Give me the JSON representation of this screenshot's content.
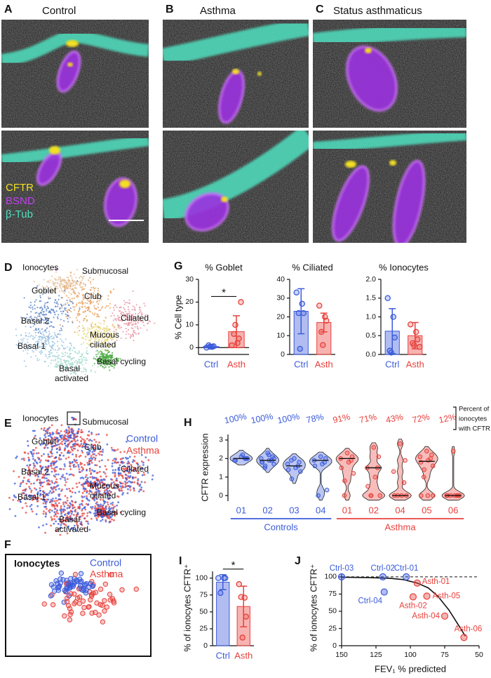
{
  "panels_top": [
    {
      "letter": "A",
      "title": "Control"
    },
    {
      "letter": "B",
      "title": "Asthma"
    },
    {
      "letter": "C",
      "title": "Status asthmaticus"
    }
  ],
  "channel_legend": [
    {
      "name": "CFTR",
      "color": "#f0e020"
    },
    {
      "name": "BSND",
      "color": "#c040f0"
    },
    {
      "name": "β-Tub",
      "color": "#50e0c0"
    }
  ],
  "tsne": [
    {
      "letter": "D",
      "labels": [
        "Ionocytes",
        "Submucosal",
        "Goblet",
        "Club",
        "Basal 2",
        "Ciliated",
        "Mucous",
        "ciliated",
        "Basal 1",
        "Basal cycling",
        "Basal",
        "activated"
      ]
    },
    {
      "letter": "E",
      "labels": [
        "Ionocytes",
        "Submucosal",
        "Goblet",
        "Club",
        "Basal 2",
        "Ciliated",
        "Mucous",
        "ciliated",
        "Basal 1",
        "Basal cycling",
        "Basal",
        "activated"
      ],
      "legend": [
        {
          "name": "Control",
          "color": "#3b5bdb"
        },
        {
          "name": "Asthma",
          "color": "#e8413c"
        }
      ]
    },
    {
      "letter": "F",
      "title": "Ionocytes",
      "legend": [
        {
          "name": "Control",
          "color": "#3b5bdb"
        },
        {
          "name": "Asthma",
          "color": "#e8413c"
        }
      ]
    }
  ],
  "chart_data": [
    {
      "type": "bar",
      "letter": "G",
      "title": "% Goblet",
      "ylabel": "% Cell type",
      "ylim": [
        -3,
        30
      ],
      "yticks": [
        0,
        10,
        20,
        30
      ],
      "significance": "*",
      "series": [
        {
          "name": "Ctrl",
          "color": "#3b5bdb",
          "value": 0.5,
          "error": 0.6,
          "points": [
            0,
            0.3,
            0.6,
            1,
            0.4
          ]
        },
        {
          "name": "Asth",
          "color": "#e8413c",
          "value": 7,
          "error": 7,
          "points": [
            1,
            2,
            4,
            6,
            10,
            20
          ]
        }
      ]
    },
    {
      "type": "bar",
      "title": "% Ciliated",
      "ylim": [
        0,
        40
      ],
      "yticks": [
        0,
        10,
        20,
        30,
        40
      ],
      "series": [
        {
          "name": "Ctrl",
          "color": "#3b5bdb",
          "value": 23,
          "error": 12,
          "points": [
            33,
            27,
            22,
            22,
            3
          ]
        },
        {
          "name": "Asth",
          "color": "#e8413c",
          "value": 17,
          "error": 5,
          "points": [
            26,
            20,
            18,
            12,
            5
          ]
        }
      ]
    },
    {
      "type": "bar",
      "title": "% Ionocytes",
      "ylim": [
        0,
        2
      ],
      "yticks": [
        {
          "value": 0,
          "label": "0.0"
        },
        {
          "value": 0.5,
          "label": "0.5"
        },
        {
          "value": 1,
          "label": "1.0"
        },
        {
          "value": 1.5,
          "label": "1.5"
        },
        {
          "value": 2,
          "label": "2.0"
        }
      ],
      "series": [
        {
          "name": "Ctrl",
          "color": "#3b5bdb",
          "value": 0.62,
          "error": 0.6,
          "points": [
            1.5,
            1.0,
            0.45,
            0.1,
            0.05
          ]
        },
        {
          "name": "Asth",
          "color": "#e8413c",
          "value": 0.5,
          "error": 0.35,
          "points": [
            0.8,
            0.6,
            0.4,
            0.3,
            0.25,
            0.2
          ]
        }
      ]
    },
    {
      "type": "violin",
      "letter": "H",
      "ylabel": "CFTR expression",
      "ylim": [
        -0.3,
        3.3
      ],
      "yticks": [
        0,
        1,
        2,
        3
      ],
      "note": [
        "Percent of",
        "ionocytes",
        "with CFTR"
      ],
      "series": [
        {
          "name": "Controls",
          "color": "#3b5bdb",
          "categories": [
            "01",
            "02",
            "03",
            "04"
          ],
          "percent_labels": [
            "100%",
            "100%",
            "100%",
            "78%"
          ],
          "medians": [
            2.0,
            1.9,
            1.6,
            1.9
          ],
          "points": [
            [
              2.1,
              2.0,
              1.9,
              2.0,
              2.2,
              1.9,
              2.0
            ],
            [
              2.3,
              2.1,
              2.0,
              1.9,
              1.9,
              1.8,
              1.7,
              1.6,
              1.5,
              2.0,
              1.8,
              2.2
            ],
            [
              2.0,
              1.8,
              1.7,
              1.6,
              1.5,
              1.4,
              1.3,
              0.9,
              1.9
            ],
            [
              2.1,
              2.0,
              1.9,
              1.8,
              1.7,
              1.6,
              0.3,
              0
            ]
          ]
        },
        {
          "name": "Asthma",
          "color": "#e8413c",
          "categories": [
            "01",
            "02",
            "04",
            "05",
            "06"
          ],
          "percent_labels": [
            "91%",
            "71%",
            "43%",
            "72%",
            "12%"
          ],
          "medians": [
            2.0,
            1.5,
            0,
            1.85,
            0
          ],
          "points": [
            [
              2.3,
              2.1,
              2.0,
              1.9,
              1.8,
              1.5,
              1.2,
              0.8,
              0
            ],
            [
              2.6,
              2.1,
              1.5,
              1.5,
              1.0,
              0.5,
              0,
              0,
              0
            ],
            [
              2.8,
              1.9,
              1.3,
              0.7,
              0,
              0,
              0,
              0
            ],
            [
              2.4,
              2.2,
              2.1,
              2.0,
              1.9,
              1.8,
              1.6,
              1.4,
              1.0,
              0,
              0,
              0
            ],
            [
              2.4,
              0,
              0,
              0,
              0,
              0,
              0,
              0
            ]
          ]
        }
      ]
    },
    {
      "type": "bar",
      "letter": "I",
      "ylabel": "% of ionocytes CFTR⁺",
      "ylim": [
        0,
        110
      ],
      "yticks": [
        0,
        25,
        50,
        75,
        100
      ],
      "significance": "*",
      "series": [
        {
          "name": "Ctrl",
          "color": "#3b5bdb",
          "value": 94,
          "error": 11,
          "points": [
            100,
            100,
            100,
            78
          ]
        },
        {
          "name": "Asth",
          "color": "#e8413c",
          "value": 58,
          "error": 30,
          "points": [
            91,
            71,
            43,
            72,
            12
          ]
        }
      ]
    },
    {
      "type": "scatter",
      "letter": "J",
      "ylabel": "% of ionocytes CFTR⁺",
      "xlabel": "FEV₁ % predicted",
      "xlim": [
        150,
        50
      ],
      "xticks": [
        150,
        125,
        100,
        75,
        50
      ],
      "ylim": [
        0,
        105
      ],
      "yticks": [
        0,
        25,
        50,
        75,
        100
      ],
      "reference_line": 100,
      "fit": {
        "x": [
          150,
          130,
          115,
          105,
          95,
          87,
          80,
          72,
          65,
          60
        ],
        "y": [
          99.5,
          99,
          98,
          96,
          91,
          84,
          72,
          52,
          30,
          14
        ]
      },
      "series": [
        {
          "color": "#3b5bdb",
          "points": [
            {
              "label": "Ctrl-03",
              "x": 150,
              "y": 100
            },
            {
              "label": "Ctrl-02",
              "x": 120,
              "y": 100
            },
            {
              "label": "Ctrl-01",
              "x": 103,
              "y": 100
            },
            {
              "label": "Ctrl-04",
              "x": 119,
              "y": 78
            }
          ]
        },
        {
          "color": "#e8413c",
          "points": [
            {
              "label": "Asth-01",
              "x": 95,
              "y": 91
            },
            {
              "label": "Asth-02",
              "x": 98,
              "y": 71
            },
            {
              "label": "Asth-05",
              "x": 88,
              "y": 72
            },
            {
              "label": "Asth-04",
              "x": 75,
              "y": 43
            },
            {
              "label": "Asth-06",
              "x": 61,
              "y": 12
            }
          ]
        }
      ]
    }
  ]
}
